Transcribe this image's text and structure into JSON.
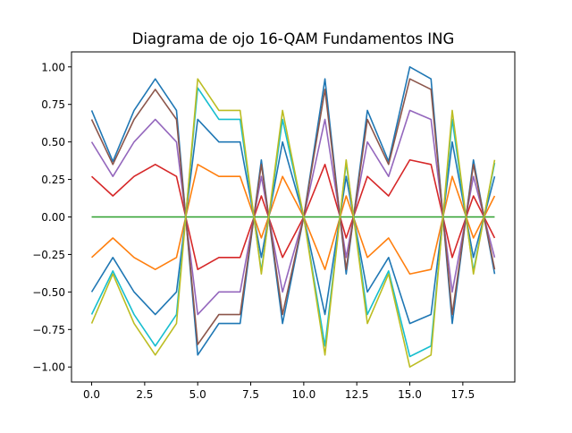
{
  "chart_data": {
    "type": "line",
    "title": "Diagrama de ojo 16-QAM Fundamentos ING",
    "xlabel": "",
    "ylabel": "",
    "xlim": [
      -0.95,
      19.95
    ],
    "ylim": [
      -1.1,
      1.1
    ],
    "grid": false,
    "legend": "none",
    "x": [
      0,
      1,
      2,
      3,
      4,
      5,
      6,
      7,
      8,
      9,
      10,
      11,
      12,
      13,
      14,
      15,
      16,
      17,
      18,
      19
    ],
    "xticks": [
      0.0,
      2.5,
      5.0,
      7.5,
      10.0,
      12.5,
      15.0,
      17.5
    ],
    "xtick_labels": [
      "0.0",
      "2.5",
      "5.0",
      "7.5",
      "10.0",
      "12.5",
      "15.0",
      "17.5"
    ],
    "yticks": [
      -1.0,
      -0.75,
      -0.5,
      -0.25,
      0.0,
      0.25,
      0.5,
      0.75,
      1.0
    ],
    "ytick_labels": [
      "−1.00",
      "−0.75",
      "−0.50",
      "−0.25",
      "0.00",
      "0.25",
      "0.50",
      "0.75",
      "1.00"
    ],
    "series": [
      {
        "color": "#1f77b4",
        "values": [
          0.71,
          0.37,
          0.71,
          0.92,
          0.71,
          -0.92,
          -0.71,
          -0.71,
          0.38,
          -0.71,
          0.0,
          0.92,
          -0.38,
          0.71,
          0.37,
          1.0,
          0.92,
          -0.71,
          0.38,
          -0.38
        ]
      },
      {
        "color": "#ff7f0e",
        "values": [
          -0.27,
          -0.14,
          -0.27,
          -0.35,
          -0.27,
          0.35,
          0.27,
          0.27,
          -0.14,
          0.27,
          0.0,
          -0.35,
          0.14,
          -0.27,
          -0.14,
          -0.38,
          -0.35,
          0.27,
          -0.14,
          0.14
        ]
      },
      {
        "color": "#2ca02c",
        "values": [
          0,
          0,
          0,
          0,
          0,
          0,
          0,
          0,
          0,
          0,
          0,
          0,
          0,
          0,
          0,
          0,
          0,
          0,
          0,
          0
        ]
      },
      {
        "color": "#d62728",
        "values": [
          0.27,
          0.14,
          0.27,
          0.35,
          0.27,
          -0.35,
          -0.27,
          -0.27,
          0.14,
          -0.27,
          0.0,
          0.35,
          -0.14,
          0.27,
          0.14,
          0.38,
          0.35,
          -0.27,
          0.14,
          -0.14
        ]
      },
      {
        "color": "#9467bd",
        "values": [
          0.5,
          0.27,
          0.5,
          0.65,
          0.5,
          -0.65,
          -0.5,
          -0.5,
          0.27,
          -0.5,
          0.0,
          0.65,
          -0.27,
          0.5,
          0.27,
          0.71,
          0.65,
          -0.5,
          0.27,
          -0.27
        ]
      },
      {
        "color": "#8c564b",
        "values": [
          0.65,
          0.35,
          0.65,
          0.85,
          0.65,
          -0.85,
          -0.65,
          -0.65,
          0.35,
          -0.65,
          0.0,
          0.85,
          -0.35,
          0.65,
          0.35,
          0.92,
          0.85,
          -0.65,
          0.35,
          -0.35
        ]
      },
      {
        "color": "#1f77b4",
        "values": [
          -0.5,
          -0.27,
          -0.5,
          -0.65,
          -0.5,
          0.65,
          0.5,
          0.5,
          -0.27,
          0.5,
          0.0,
          -0.65,
          0.27,
          -0.5,
          -0.27,
          -0.71,
          -0.65,
          0.5,
          -0.27,
          0.27
        ]
      },
      {
        "color": "#17becf",
        "values": [
          -0.65,
          -0.36,
          -0.65,
          -0.86,
          -0.65,
          0.86,
          0.65,
          0.65,
          -0.36,
          0.65,
          0.0,
          -0.86,
          0.36,
          -0.65,
          -0.36,
          -0.93,
          -0.86,
          0.65,
          -0.36,
          0.36
        ]
      },
      {
        "color": "#bcbd22",
        "values": [
          -0.71,
          -0.38,
          -0.71,
          -0.92,
          -0.71,
          0.92,
          0.71,
          0.71,
          -0.38,
          0.71,
          0.0,
          -0.92,
          0.38,
          -0.71,
          -0.38,
          -1.0,
          -0.92,
          0.71,
          -0.38,
          0.38
        ]
      }
    ]
  }
}
